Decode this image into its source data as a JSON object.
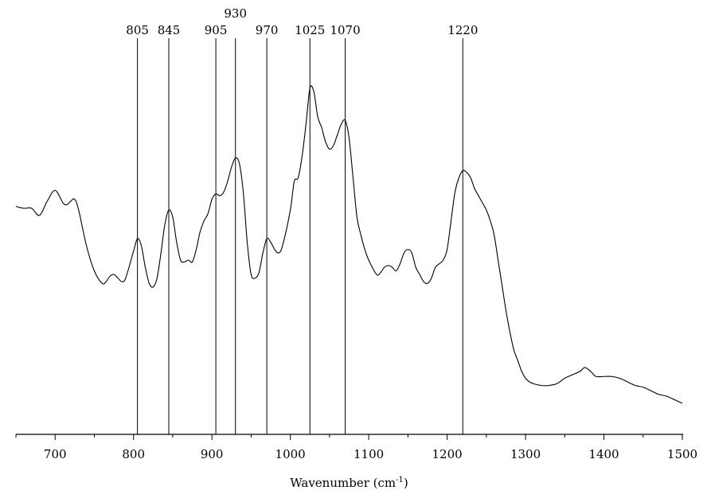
{
  "chart_data": {
    "type": "line",
    "title": "",
    "xlabel": "Wavenumber (cm",
    "xlabel_sup": "-1",
    "xlabel_close": ")",
    "ylabel": "",
    "xlim": [
      650,
      1500
    ],
    "ylim": [
      0,
      1
    ],
    "yaxis_shown": false,
    "grid": false,
    "line_color": "#000000",
    "x_ticks": [
      700,
      800,
      900,
      1000,
      1100,
      1200,
      1300,
      1400,
      1500
    ],
    "x_tick_labels": [
      "700",
      "800",
      "900",
      "1000",
      "1100",
      "1200",
      "1300",
      "1400",
      "1500"
    ],
    "peak_markers": [
      {
        "x": 805,
        "label": "805",
        "raised": false
      },
      {
        "x": 845,
        "label": "845",
        "raised": false
      },
      {
        "x": 905,
        "label": "905",
        "raised": false
      },
      {
        "x": 930,
        "label": "930",
        "raised": true
      },
      {
        "x": 970,
        "label": "970",
        "raised": false
      },
      {
        "x": 1025,
        "label": "1025",
        "raised": false
      },
      {
        "x": 1070,
        "label": "1070",
        "raised": false
      },
      {
        "x": 1220,
        "label": "1220",
        "raised": false
      }
    ],
    "series": [
      {
        "x": [
          650,
          660,
          670,
          680,
          690,
          700,
          710,
          715,
          720,
          725,
          730,
          740,
          750,
          760,
          765,
          770,
          775,
          780,
          785,
          790,
          800,
          805,
          810,
          815,
          820,
          825,
          830,
          835,
          840,
          845,
          850,
          855,
          860,
          865,
          870,
          875,
          880,
          885,
          890,
          895,
          900,
          905,
          910,
          915,
          920,
          925,
          930,
          935,
          940,
          945,
          950,
          955,
          960,
          965,
          970,
          975,
          980,
          985,
          990,
          1000,
          1005,
          1010,
          1015,
          1020,
          1025,
          1030,
          1035,
          1040,
          1045,
          1050,
          1055,
          1060,
          1065,
          1070,
          1075,
          1080,
          1085,
          1090,
          1095,
          1100,
          1110,
          1115,
          1120,
          1125,
          1130,
          1135,
          1140,
          1145,
          1150,
          1155,
          1160,
          1165,
          1170,
          1175,
          1180,
          1185,
          1190,
          1195,
          1200,
          1205,
          1210,
          1215,
          1220,
          1225,
          1230,
          1235,
          1240,
          1245,
          1250,
          1255,
          1260,
          1265,
          1270,
          1275,
          1280,
          1285,
          1290,
          1295,
          1300,
          1305,
          1310,
          1320,
          1330,
          1340,
          1350,
          1360,
          1370,
          1375,
          1380,
          1385,
          1390,
          1400,
          1410,
          1420,
          1430,
          1440,
          1450,
          1460,
          1470,
          1480,
          1490,
          1500
        ],
        "y": [
          0.57,
          0.565,
          0.565,
          0.545,
          0.585,
          0.615,
          0.58,
          0.575,
          0.585,
          0.59,
          0.56,
          0.46,
          0.39,
          0.355,
          0.36,
          0.375,
          0.38,
          0.37,
          0.36,
          0.37,
          0.445,
          0.48,
          0.46,
          0.4,
          0.355,
          0.345,
          0.37,
          0.44,
          0.52,
          0.56,
          0.54,
          0.47,
          0.42,
          0.415,
          0.42,
          0.415,
          0.45,
          0.5,
          0.53,
          0.55,
          0.59,
          0.605,
          0.6,
          0.61,
          0.64,
          0.68,
          0.705,
          0.69,
          0.61,
          0.47,
          0.38,
          0.37,
          0.385,
          0.44,
          0.48,
          0.47,
          0.45,
          0.44,
          0.46,
          0.56,
          0.64,
          0.65,
          0.71,
          0.8,
          0.9,
          0.89,
          0.82,
          0.79,
          0.75,
          0.73,
          0.74,
          0.77,
          0.8,
          0.81,
          0.76,
          0.65,
          0.54,
          0.49,
          0.45,
          0.42,
          0.38,
          0.385,
          0.4,
          0.405,
          0.4,
          0.39,
          0.41,
          0.44,
          0.45,
          0.44,
          0.4,
          0.38,
          0.36,
          0.355,
          0.37,
          0.4,
          0.41,
          0.42,
          0.45,
          0.53,
          0.61,
          0.65,
          0.67,
          0.665,
          0.65,
          0.62,
          0.6,
          0.58,
          0.56,
          0.53,
          0.49,
          0.42,
          0.35,
          0.28,
          0.22,
          0.17,
          0.14,
          0.11,
          0.09,
          0.08,
          0.075,
          0.07,
          0.07,
          0.075,
          0.09,
          0.1,
          0.11,
          0.12,
          0.115,
          0.105,
          0.095,
          0.095,
          0.095,
          0.09,
          0.08,
          0.07,
          0.065,
          0.055,
          0.045,
          0.04,
          0.03,
          0.02
        ]
      }
    ]
  }
}
